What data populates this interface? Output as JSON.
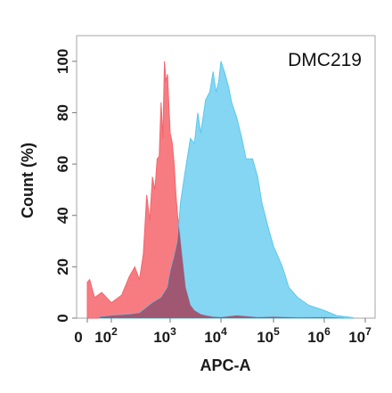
{
  "chart_data": {
    "type": "area",
    "annotation": "DMC219",
    "xlabel": "APC-A",
    "ylabel": "Count  (%)",
    "x_scale": "biexponential",
    "xlim": [
      0,
      10000000
    ],
    "ylim": [
      0,
      110
    ],
    "y_ticks": [
      "0",
      "20",
      "40",
      "60",
      "80",
      "100"
    ],
    "x_ticks": [
      {
        "base": "0",
        "exp": ""
      },
      {
        "base": "10",
        "exp": "2"
      },
      {
        "base": "10",
        "exp": "3"
      },
      {
        "base": "10",
        "exp": "4"
      },
      {
        "base": "10",
        "exp": "5"
      },
      {
        "base": "10",
        "exp": "6"
      },
      {
        "base": "10",
        "exp": "7"
      }
    ],
    "legend": "none",
    "grid": false,
    "series": [
      {
        "color": "#f4656c",
        "x": [
          0,
          10,
          30,
          60,
          100,
          150,
          200,
          250,
          300,
          350,
          400,
          450,
          500,
          550,
          600,
          650,
          700,
          750,
          800,
          850,
          900,
          1000,
          1100,
          1200,
          1300,
          1400,
          1500,
          1700,
          2000,
          2500,
          3000,
          4000,
          5000,
          7000,
          10000,
          20000,
          50000,
          100000,
          300000,
          1000000,
          3000000
        ],
        "y": [
          14,
          15,
          8,
          10,
          6,
          9,
          16,
          20,
          15,
          25,
          48,
          38,
          55,
          50,
          62,
          63,
          84,
          70,
          100,
          92,
          95,
          72,
          68,
          60,
          48,
          40,
          35,
          25,
          12,
          5,
          3,
          1.5,
          1,
          0.5,
          0.3,
          1,
          0.3,
          0.5,
          0.2,
          0.3,
          0.1
        ]
      },
      {
        "color": "#5cc8ee",
        "x": [
          50,
          100,
          200,
          300,
          500,
          700,
          900,
          1000,
          1200,
          1400,
          1600,
          2000,
          2500,
          3000,
          3500,
          4000,
          5000,
          6000,
          7000,
          8000,
          9000,
          10000,
          12000,
          14000,
          16000,
          20000,
          25000,
          30000,
          40000,
          50000,
          60000,
          80000,
          100000,
          150000,
          200000,
          300000,
          500000,
          1000000,
          2000000,
          5000000
        ],
        "y": [
          0.5,
          1,
          1.5,
          2,
          6,
          8,
          12,
          18,
          24,
          30,
          45,
          58,
          70,
          68,
          80,
          72,
          85,
          88,
          96,
          88,
          92,
          100,
          95,
          90,
          84,
          78,
          70,
          62,
          62,
          55,
          45,
          35,
          28,
          20,
          12,
          8,
          5,
          3,
          1,
          0.2
        ]
      }
    ]
  }
}
